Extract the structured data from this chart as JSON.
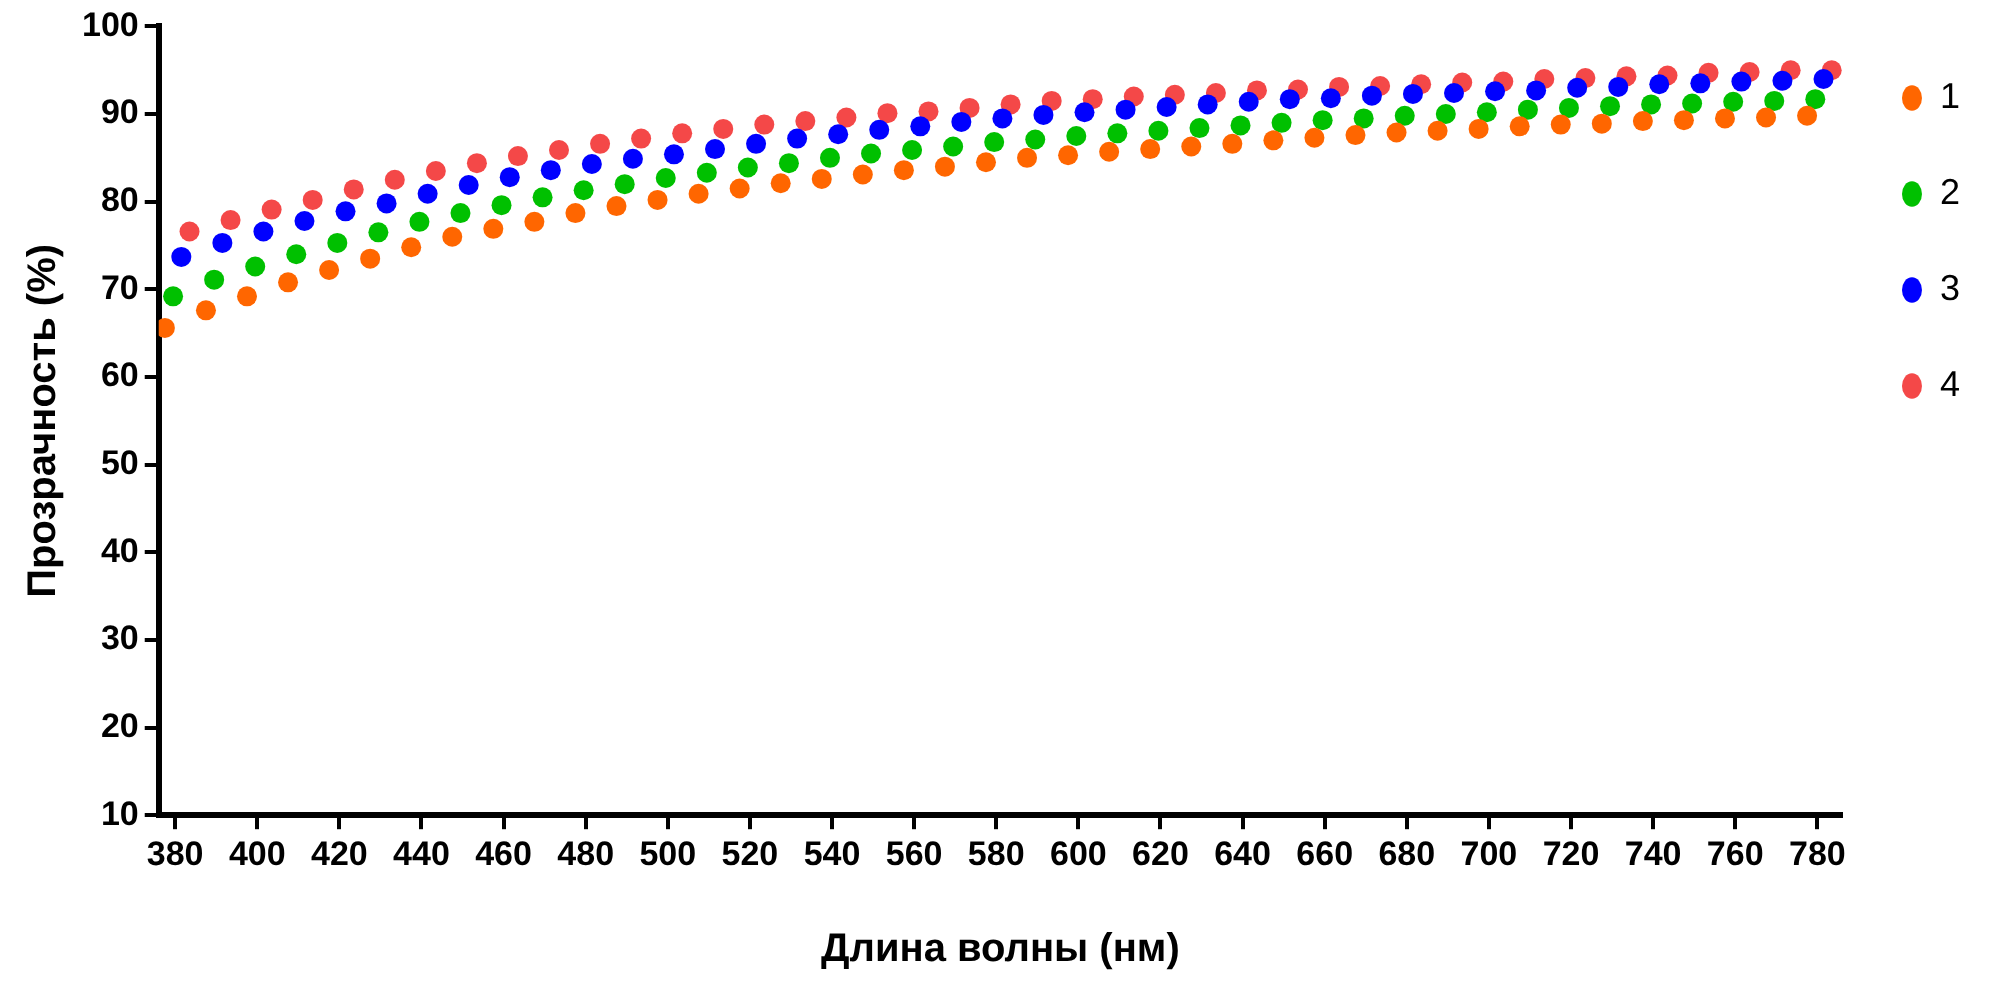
{
  "chart_data": {
    "type": "scatter",
    "xlabel": "Длина волны (нм)",
    "ylabel": "Прозрачность (%)",
    "xlim": [
      376,
      786
    ],
    "xticks": [
      380,
      400,
      420,
      440,
      460,
      480,
      500,
      520,
      540,
      560,
      580,
      600,
      620,
      640,
      660,
      680,
      700,
      720,
      740,
      760,
      780
    ],
    "ylim": [
      10,
      100
    ],
    "yticks": [
      10,
      20,
      30,
      40,
      50,
      60,
      70,
      80,
      90,
      100
    ],
    "grid": false,
    "legend": "top right",
    "marker": "circle",
    "series": [
      {
        "name": "1",
        "color": "#ff6600",
        "x": [
          377.5,
          387.5,
          397.5,
          407.5,
          417.5,
          427.5,
          437.5,
          447.5,
          457.5,
          467.5,
          477.5,
          487.5,
          497.5,
          507.5,
          517.5,
          527.5,
          537.5,
          547.5,
          557.5,
          567.5,
          577.5,
          587.5,
          597.5,
          607.5,
          617.5,
          627.5,
          637.5,
          647.5,
          657.5,
          667.5,
          677.5,
          687.5,
          697.5,
          707.5,
          717.5,
          727.5,
          737.5,
          747.5,
          757.5,
          767.5,
          777.5
        ],
        "values": [
          65.6,
          67.6,
          69.2,
          70.8,
          72.2,
          73.5,
          74.8,
          76.0,
          76.9,
          77.7,
          78.7,
          79.5,
          80.2,
          80.9,
          81.5,
          82.1,
          82.6,
          83.1,
          83.6,
          84.0,
          84.5,
          85.0,
          85.3,
          85.7,
          86.0,
          86.3,
          86.6,
          87.0,
          87.3,
          87.6,
          87.9,
          88.1,
          88.3,
          88.6,
          88.8,
          88.9,
          89.2,
          89.3,
          89.5,
          89.6,
          89.8
        ]
      },
      {
        "name": "2",
        "color": "#00c000",
        "x": [
          379.5,
          389.5,
          399.5,
          409.5,
          419.5,
          429.5,
          439.5,
          449.5,
          459.5,
          469.5,
          479.5,
          489.5,
          499.5,
          509.5,
          519.5,
          529.5,
          539.5,
          549.5,
          559.5,
          569.5,
          579.5,
          589.5,
          599.5,
          609.5,
          619.5,
          629.5,
          639.5,
          649.5,
          659.5,
          669.5,
          679.5,
          689.5,
          699.5,
          709.5,
          719.5,
          729.5,
          739.5,
          749.5,
          759.5,
          769.5,
          779.5
        ],
        "values": [
          69.2,
          71.1,
          72.6,
          74.0,
          75.3,
          76.5,
          77.7,
          78.7,
          79.6,
          80.5,
          81.3,
          82.0,
          82.7,
          83.3,
          83.9,
          84.4,
          85.0,
          85.5,
          85.9,
          86.3,
          86.8,
          87.1,
          87.5,
          87.8,
          88.1,
          88.4,
          88.7,
          89.0,
          89.3,
          89.5,
          89.8,
          90.0,
          90.2,
          90.5,
          90.7,
          90.9,
          91.1,
          91.2,
          91.4,
          91.5,
          91.7
        ]
      },
      {
        "name": "3",
        "color": "#0000ff",
        "x": [
          381.5,
          391.5,
          401.5,
          411.5,
          421.5,
          431.5,
          441.5,
          451.5,
          461.5,
          471.5,
          481.5,
          491.5,
          501.5,
          511.5,
          521.5,
          531.5,
          541.5,
          551.5,
          561.5,
          571.5,
          581.5,
          591.5,
          601.5,
          611.5,
          621.5,
          631.5,
          641.5,
          651.5,
          661.5,
          671.5,
          681.5,
          691.5,
          701.5,
          711.5,
          721.5,
          731.5,
          741.5,
          751.5,
          761.5,
          771.5,
          781.5
        ],
        "values": [
          73.7,
          75.3,
          76.6,
          77.8,
          78.9,
          79.8,
          80.9,
          81.9,
          82.8,
          83.6,
          84.3,
          84.9,
          85.4,
          86.0,
          86.6,
          87.2,
          87.7,
          88.2,
          88.6,
          89.1,
          89.5,
          89.9,
          90.2,
          90.5,
          90.8,
          91.1,
          91.4,
          91.7,
          91.8,
          92.1,
          92.3,
          92.4,
          92.6,
          92.7,
          93.0,
          93.1,
          93.4,
          93.5,
          93.7,
          93.8,
          94.0
        ]
      },
      {
        "name": "4",
        "color": "#f44848",
        "x": [
          383.5,
          393.5,
          403.5,
          413.5,
          423.5,
          433.5,
          443.5,
          453.5,
          463.5,
          473.5,
          483.5,
          493.5,
          503.5,
          513.5,
          523.5,
          533.5,
          543.5,
          553.5,
          563.5,
          573.5,
          583.5,
          593.5,
          603.5,
          613.5,
          623.5,
          633.5,
          643.5,
          653.5,
          663.5,
          673.5,
          683.5,
          693.5,
          703.5,
          713.5,
          723.5,
          733.5,
          743.5,
          753.5,
          763.5,
          773.5,
          783.5
        ],
        "values": [
          76.6,
          77.9,
          79.1,
          80.2,
          81.4,
          82.5,
          83.5,
          84.4,
          85.2,
          85.9,
          86.6,
          87.2,
          87.8,
          88.3,
          88.8,
          89.2,
          89.6,
          90.1,
          90.3,
          90.7,
          91.1,
          91.5,
          91.7,
          92.0,
          92.2,
          92.4,
          92.7,
          92.8,
          93.1,
          93.2,
          93.4,
          93.6,
          93.7,
          94.0,
          94.1,
          94.3,
          94.4,
          94.7,
          94.8,
          95.0,
          95.0
        ]
      }
    ]
  }
}
